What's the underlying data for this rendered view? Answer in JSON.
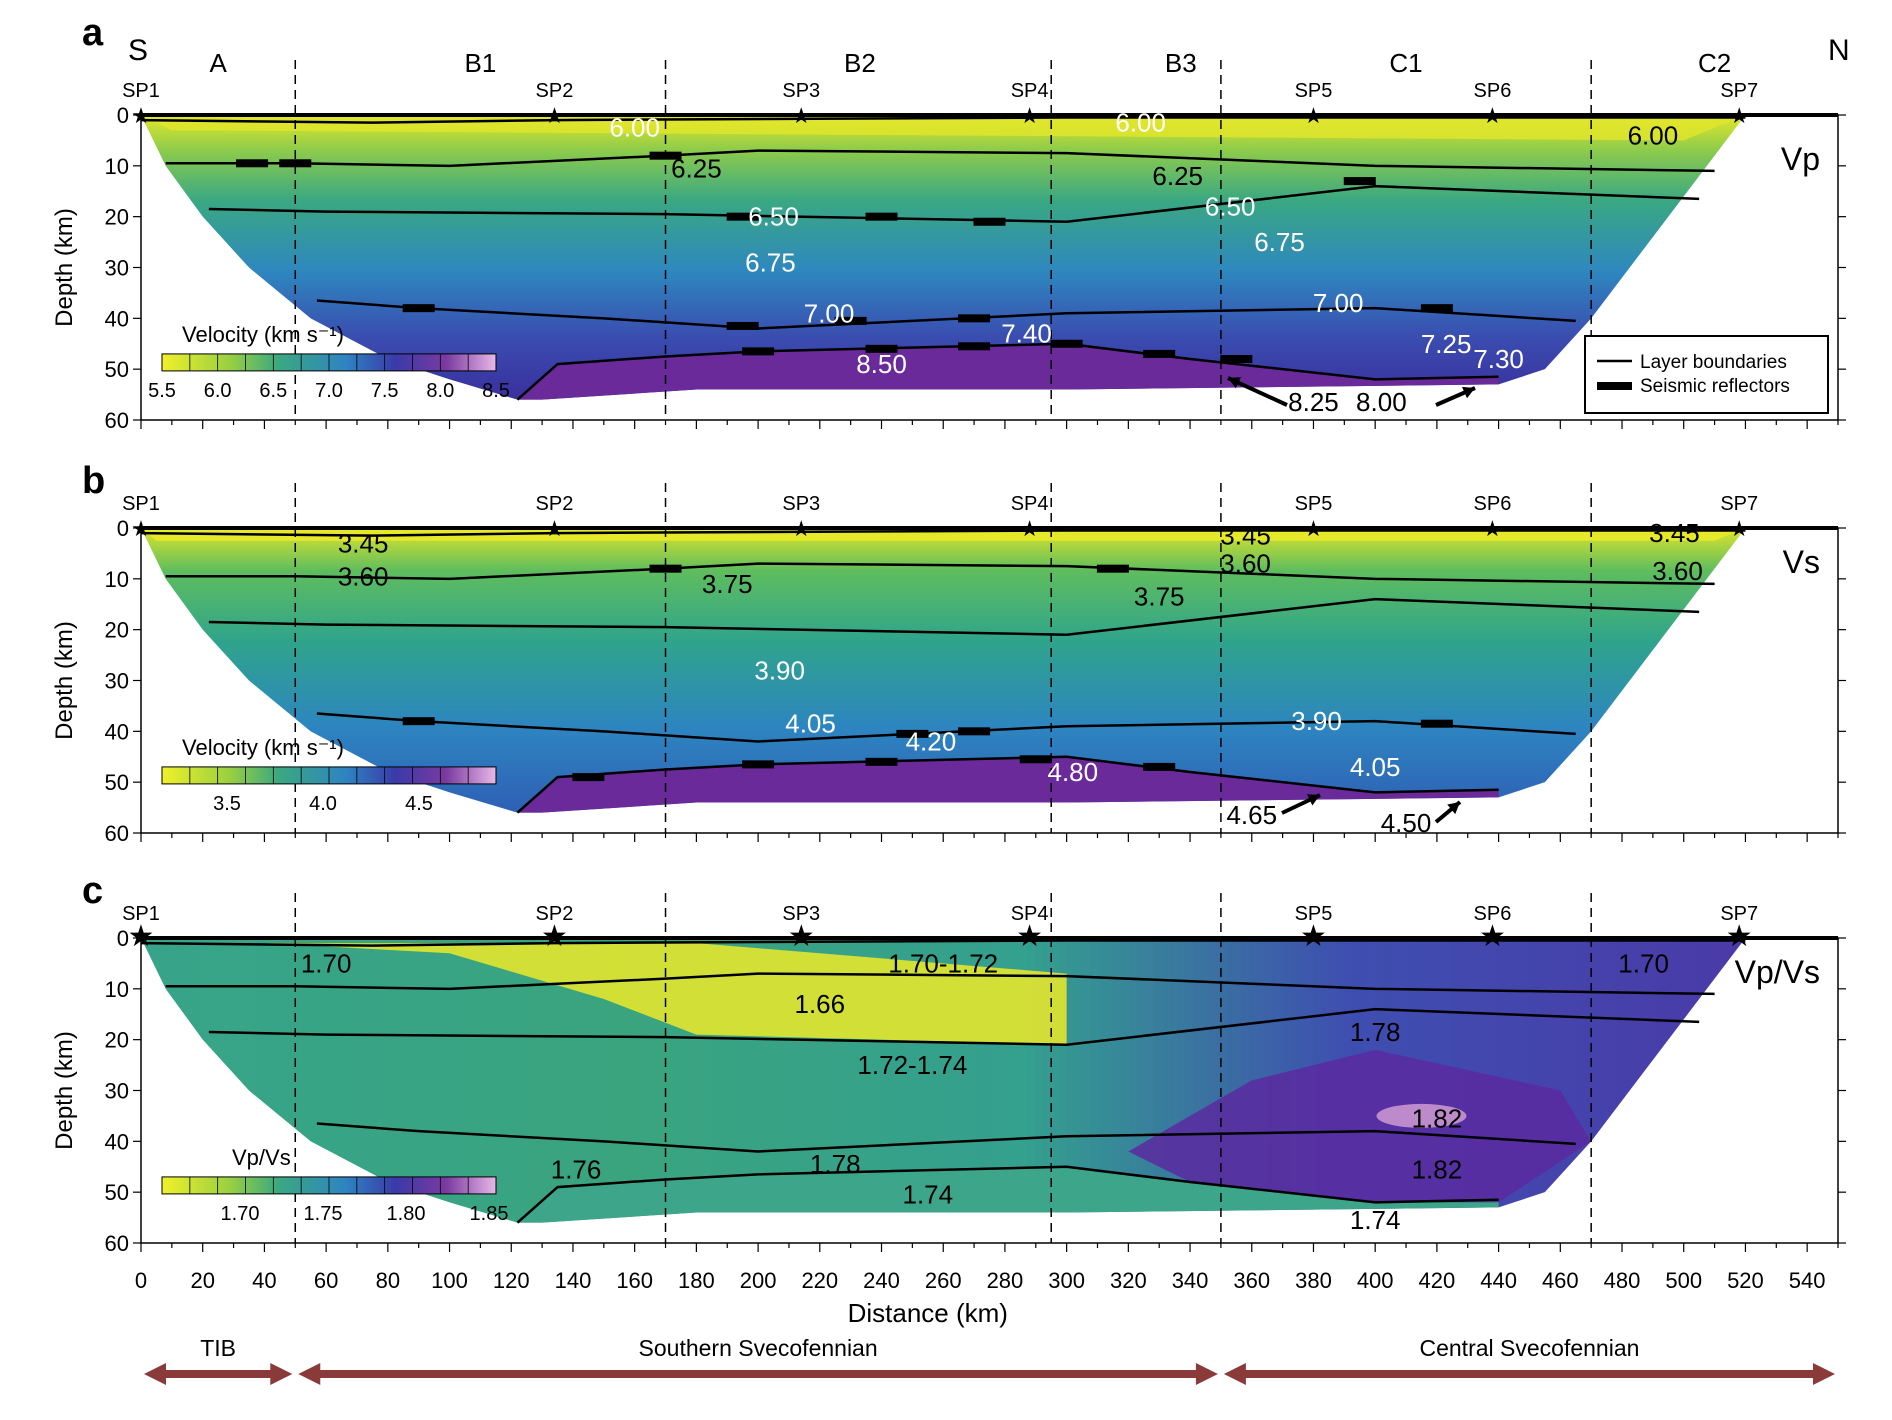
{
  "colors": {
    "yellow": "#e9ea2a",
    "green": "#4db36b",
    "teal": "#2e9a99",
    "blue": "#2f7fbf",
    "indigo": "#3b3ba6",
    "purple": "#6a2a9a",
    "pink": "#d9a6d9",
    "arrow": "#8b3a3a"
  },
  "header": {
    "south": "S",
    "north": "N"
  },
  "blocks": [
    {
      "label": "A",
      "x": 25
    },
    {
      "label": "B1",
      "x": 110
    },
    {
      "label": "B2",
      "x": 233
    },
    {
      "label": "B3",
      "x": 337
    },
    {
      "label": "C1",
      "x": 410
    },
    {
      "label": "C2",
      "x": 510
    }
  ],
  "block_boundaries_km": [
    50,
    170,
    295,
    350,
    470
  ],
  "shot_points": [
    {
      "label": "SP1",
      "x": 0
    },
    {
      "label": "SP2",
      "x": 134
    },
    {
      "label": "SP3",
      "x": 214
    },
    {
      "label": "SP4",
      "x": 288
    },
    {
      "label": "SP5",
      "x": 380
    },
    {
      "label": "SP6",
      "x": 438
    },
    {
      "label": "SP7",
      "x": 518
    }
  ],
  "x_axis": {
    "label": "Distance (km)",
    "ticks": [
      0,
      20,
      40,
      60,
      80,
      100,
      120,
      140,
      160,
      180,
      200,
      220,
      240,
      260,
      280,
      300,
      320,
      340,
      360,
      380,
      400,
      420,
      440,
      460,
      480,
      500,
      520,
      540
    ],
    "range": [
      0,
      550
    ]
  },
  "y_axis": {
    "label": "Depth (km)",
    "ticks": [
      0,
      10,
      20,
      30,
      40,
      50,
      60
    ],
    "range": [
      0,
      60
    ]
  },
  "legend": {
    "boundary_label": "Layer boundaries",
    "reflector_label": "Seismic reflectors"
  },
  "provinces": [
    {
      "label": "TIB",
      "from": 0,
      "to": 50
    },
    {
      "label": "Southern Svecofennian",
      "from": 50,
      "to": 350
    },
    {
      "label": "Central Svecofennian",
      "from": 350,
      "to": 550
    }
  ],
  "panels": [
    {
      "letter": "a",
      "tag": "Vp",
      "scale_title": "Velocity (km s⁻¹)",
      "scale_ticks": [
        "5.5",
        "6.0",
        "6.5",
        "7.0",
        "7.5",
        "8.0",
        "8.5"
      ],
      "annotations": [
        {
          "t": "6.00",
          "x": 160,
          "y": 2.5,
          "c": "w"
        },
        {
          "t": "6.00",
          "x": 324,
          "y": 1.5,
          "c": "w"
        },
        {
          "t": "6.00",
          "x": 490,
          "y": 4,
          "c": "k"
        },
        {
          "t": "6.25",
          "x": 180,
          "y": 10.5,
          "c": "k"
        },
        {
          "t": "6.25",
          "x": 336,
          "y": 12,
          "c": "k"
        },
        {
          "t": "6.50",
          "x": 205,
          "y": 20,
          "c": "w"
        },
        {
          "t": "6.50",
          "x": 353,
          "y": 18,
          "c": "w"
        },
        {
          "t": "6.75",
          "x": 204,
          "y": 29,
          "c": "w"
        },
        {
          "t": "6.75",
          "x": 369,
          "y": 25,
          "c": "w"
        },
        {
          "t": "7.00",
          "x": 223,
          "y": 39,
          "c": "w"
        },
        {
          "t": "7.00",
          "x": 388,
          "y": 37,
          "c": "w"
        },
        {
          "t": "7.40",
          "x": 287,
          "y": 43,
          "c": "w"
        },
        {
          "t": "8.50",
          "x": 240,
          "y": 49,
          "c": "w"
        },
        {
          "t": "7.25",
          "x": 423,
          "y": 45,
          "c": "w"
        },
        {
          "t": "7.30",
          "x": 440,
          "y": 48,
          "c": "w"
        },
        {
          "t": "8.25",
          "x": 380,
          "y": 56.5,
          "c": "k"
        },
        {
          "t": "8.00",
          "x": 402,
          "y": 56.5,
          "c": "k"
        }
      ]
    },
    {
      "letter": "b",
      "tag": "Vs",
      "scale_title": "Velocity (km s⁻¹)",
      "scale_ticks": [
        "3.5",
        "4.0",
        "4.5"
      ],
      "annotations": [
        {
          "t": "3.45",
          "x": 72,
          "y": 3,
          "c": "k"
        },
        {
          "t": "3.45",
          "x": 358,
          "y": 1.5,
          "c": "k"
        },
        {
          "t": "3.45",
          "x": 497,
          "y": 1,
          "c": "k"
        },
        {
          "t": "3.60",
          "x": 72,
          "y": 9.5,
          "c": "k"
        },
        {
          "t": "3.60",
          "x": 358,
          "y": 7,
          "c": "k"
        },
        {
          "t": "3.60",
          "x": 498,
          "y": 8.5,
          "c": "k"
        },
        {
          "t": "3.75",
          "x": 190,
          "y": 11,
          "c": "k"
        },
        {
          "t": "3.75",
          "x": 330,
          "y": 13.5,
          "c": "k"
        },
        {
          "t": "3.90",
          "x": 207,
          "y": 28,
          "c": "w"
        },
        {
          "t": "3.90",
          "x": 381,
          "y": 38,
          "c": "w"
        },
        {
          "t": "4.05",
          "x": 217,
          "y": 38.5,
          "c": "w"
        },
        {
          "t": "4.20",
          "x": 256,
          "y": 42,
          "c": "w"
        },
        {
          "t": "4.80",
          "x": 302,
          "y": 48,
          "c": "w"
        },
        {
          "t": "4.05",
          "x": 400,
          "y": 47,
          "c": "w"
        },
        {
          "t": "4.65",
          "x": 360,
          "y": 56.5,
          "c": "k"
        },
        {
          "t": "4.50",
          "x": 410,
          "y": 58,
          "c": "k"
        }
      ]
    },
    {
      "letter": "c",
      "tag": "Vp/Vs",
      "scale_title": "Vp/Vs",
      "scale_ticks": [
        "1.70",
        "1.75",
        "1.80",
        "1.85"
      ],
      "annotations": [
        {
          "t": "1.70",
          "x": 60,
          "y": 5,
          "c": "k"
        },
        {
          "t": "1.70-1.72",
          "x": 260,
          "y": 5,
          "c": "k"
        },
        {
          "t": "1.70",
          "x": 487,
          "y": 5,
          "c": "k"
        },
        {
          "t": "1.66",
          "x": 220,
          "y": 13,
          "c": "k"
        },
        {
          "t": "1.72-1.74",
          "x": 250,
          "y": 25,
          "c": "k"
        },
        {
          "t": "1.78",
          "x": 400,
          "y": 18.5,
          "c": "k"
        },
        {
          "t": "1.82",
          "x": 420,
          "y": 35.5,
          "c": "k"
        },
        {
          "t": "1.82",
          "x": 420,
          "y": 45.5,
          "c": "k"
        },
        {
          "t": "1.76",
          "x": 141,
          "y": 45.5,
          "c": "k"
        },
        {
          "t": "1.78",
          "x": 225,
          "y": 44.5,
          "c": "k"
        },
        {
          "t": "1.74",
          "x": 255,
          "y": 50.5,
          "c": "k"
        },
        {
          "t": "1.74",
          "x": 400,
          "y": 55.5,
          "c": "k"
        }
      ]
    }
  ]
}
